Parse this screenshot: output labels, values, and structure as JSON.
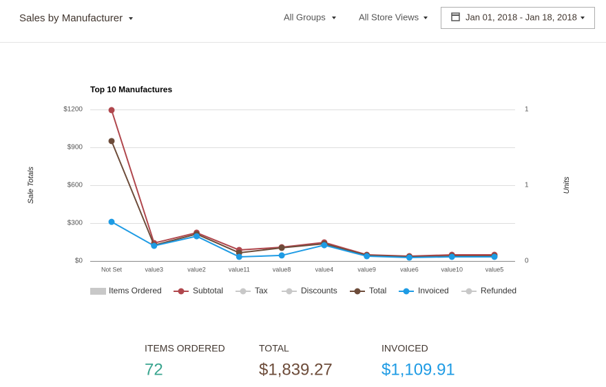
{
  "header": {
    "title": "Sales by Manufacturer",
    "groups": "All Groups",
    "store_views": "All Store Views",
    "date_range": "Jan 01, 2018 - Jan 18, 2018"
  },
  "chart_data": {
    "type": "line",
    "title": "Top 10 Manufactures",
    "y_label": "Sale Totals",
    "y2_label": "Units",
    "categories": [
      "Not Set",
      "value3",
      "value2",
      "value11",
      "value8",
      "value4",
      "value9",
      "value6",
      "value10",
      "value5"
    ],
    "series": [
      {
        "name": "Items Ordered",
        "color": "#c8c8c8",
        "axis": "y2"
      },
      {
        "name": "Subtotal",
        "color": "#b0474d",
        "values": [
          1195,
          142,
          224,
          87,
          109,
          147,
          49,
          38,
          49,
          49
        ]
      },
      {
        "name": "Tax",
        "color": "#c8c8c8"
      },
      {
        "name": "Discounts",
        "color": "#c8c8c8"
      },
      {
        "name": "Total",
        "color": "#6d4c3a",
        "values": [
          950,
          125,
          213,
          65,
          104,
          136,
          44,
          33,
          38,
          38
        ]
      },
      {
        "name": "Invoiced",
        "color": "#1e9be4",
        "values": [
          310,
          120,
          196,
          33,
          44,
          125,
          38,
          27,
          33,
          33
        ]
      },
      {
        "name": "Refunded",
        "color": "#c8c8c8"
      }
    ],
    "ylim": [
      0,
      1200
    ],
    "yticks": [
      {
        "value": 0,
        "label": "$0"
      },
      {
        "value": 300,
        "label": "$300"
      },
      {
        "value": 600,
        "label": "$600"
      },
      {
        "value": 900,
        "label": "$900"
      },
      {
        "value": 1200,
        "label": "$1200"
      }
    ],
    "y2lim": [
      0,
      1
    ],
    "y2ticks": [
      0,
      {
        "value": 0.5,
        "label": "1"
      },
      1
    ],
    "grid": true
  },
  "summary": [
    {
      "label": "ITEMS ORDERED",
      "value": "72",
      "color": "#3aa58f"
    },
    {
      "label": "TOTAL",
      "value": "$1,839.27",
      "color": "#6d4c3a"
    },
    {
      "label": "INVOICED",
      "value": "$1,109.91",
      "color": "#1e9be4"
    }
  ]
}
